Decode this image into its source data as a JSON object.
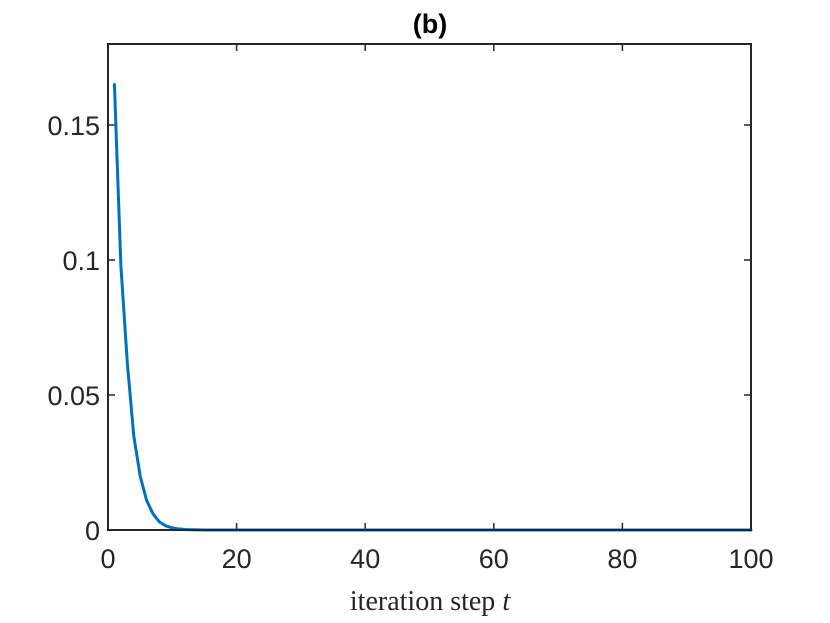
{
  "chart_data": {
    "type": "line",
    "title": "(b)",
    "xlabel": "iteration step",
    "xlabel_var": "t",
    "ylabel": "",
    "xlim": [
      0,
      100
    ],
    "ylim": [
      0,
      0.18
    ],
    "xticks": [
      0,
      20,
      40,
      60,
      80,
      100
    ],
    "xtick_labels": [
      "0",
      "20",
      "40",
      "60",
      "80",
      "100"
    ],
    "yticks": [
      0,
      0.05,
      0.1,
      0.15
    ],
    "ytick_labels": [
      "0",
      "0.05",
      "0.1",
      "0.15"
    ],
    "grid": false,
    "box": true,
    "series": [
      {
        "color": "#0072BD",
        "x": [
          1,
          2,
          3,
          4,
          5,
          6,
          7,
          8,
          9,
          10,
          11,
          12,
          13,
          14,
          15,
          16,
          17,
          18,
          19,
          20,
          25,
          30,
          40,
          50,
          60,
          70,
          80,
          90,
          100
        ],
        "y": [
          0.165,
          0.098,
          0.062,
          0.035,
          0.02,
          0.011,
          0.006,
          0.003,
          0.0015,
          0.0008,
          0.0004,
          0.0002,
          0.0001,
          5e-05,
          2e-05,
          1e-05,
          0,
          0,
          0,
          0,
          0,
          0,
          0,
          0,
          0,
          0,
          0,
          0,
          0
        ]
      }
    ]
  }
}
